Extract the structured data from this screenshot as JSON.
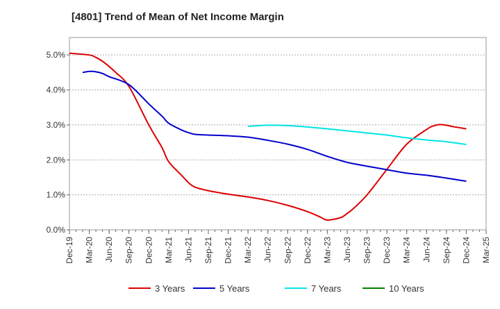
{
  "chart_data": {
    "type": "line",
    "title": "[4801]  Trend of Mean of Net Income Margin",
    "xlabel": "",
    "ylabel": "",
    "ylim": [
      0.0,
      5.5
    ],
    "y_ticks": [
      "0.0%",
      "1.0%",
      "2.0%",
      "3.0%",
      "4.0%",
      "5.0%"
    ],
    "x_ticks": [
      "Dec-19",
      "Mar-20",
      "Jun-20",
      "Sep-20",
      "Dec-20",
      "Mar-21",
      "Jun-21",
      "Sep-21",
      "Dec-21",
      "Mar-22",
      "Jun-22",
      "Sep-22",
      "Dec-22",
      "Mar-23",
      "Jun-23",
      "Sep-23",
      "Dec-23",
      "Mar-24",
      "Jun-24",
      "Sep-24",
      "Dec-24",
      "Mar-25"
    ],
    "grid": "horizontal dashed",
    "legend_position": "bottom",
    "series": [
      {
        "name": "3 Years",
        "color": "#dd0000",
        "x": [
          "Dec-19",
          "Mar-20",
          "Apr-20",
          "May-20",
          "Jun-20",
          "Jul-20",
          "Sep-20",
          "Dec-20",
          "Feb-21",
          "Mar-21",
          "May-21",
          "Jun-21",
          "Jul-21",
          "Sep-21",
          "Dec-21",
          "Mar-22",
          "Jun-22",
          "Sep-22",
          "Dec-22",
          "Feb-23",
          "Mar-23",
          "May-23",
          "Jun-23",
          "Jul-23",
          "Sep-23",
          "Dec-23",
          "Mar-24",
          "Jun-24",
          "Jul-24",
          "Aug-24",
          "Sep-24",
          "Oct-24",
          "Nov-24",
          "Dec-24"
        ],
        "values": [
          5.05,
          5.0,
          4.93,
          4.82,
          4.67,
          4.5,
          4.1,
          3.0,
          2.35,
          1.95,
          1.55,
          1.35,
          1.22,
          1.12,
          1.02,
          0.94,
          0.84,
          0.7,
          0.52,
          0.36,
          0.28,
          0.35,
          0.47,
          0.62,
          1.0,
          1.73,
          2.45,
          2.87,
          2.97,
          3.01,
          2.99,
          2.95,
          2.92,
          2.89
        ]
      },
      {
        "name": "5 Years",
        "color": "#0000cc",
        "x": [
          "Dec-19",
          "Feb-20",
          "Mar-20",
          "Apr-20",
          "May-20",
          "Jun-20",
          "Sep-20",
          "Dec-20",
          "Feb-21",
          "Mar-21",
          "May-21",
          "Jun-21",
          "Jul-21",
          "Sep-21",
          "Dec-21",
          "Mar-22",
          "Jun-22",
          "Sep-22",
          "Dec-22",
          "Mar-23",
          "Jun-23",
          "Sep-23",
          "Dec-23",
          "Mar-24",
          "Jun-24",
          "Sep-24",
          "Dec-24"
        ],
        "values": [
          null,
          4.5,
          4.53,
          4.52,
          4.47,
          4.38,
          4.15,
          3.6,
          3.25,
          3.05,
          2.85,
          2.78,
          2.73,
          2.71,
          2.69,
          2.65,
          2.56,
          2.45,
          2.3,
          2.1,
          1.93,
          1.82,
          1.72,
          1.62,
          1.56,
          1.48,
          1.39
        ]
      },
      {
        "name": "7 Years",
        "color": "#00e5e5",
        "x": [
          "Mar-22",
          "Jun-22",
          "Sep-22",
          "Dec-22",
          "Mar-23",
          "Jun-23",
          "Sep-23",
          "Dec-23",
          "Mar-24",
          "Jun-24",
          "Sep-24",
          "Dec-24"
        ],
        "values": [
          2.96,
          2.99,
          2.98,
          2.94,
          2.89,
          2.83,
          2.77,
          2.71,
          2.63,
          2.57,
          2.52,
          2.44
        ]
      },
      {
        "name": "10 Years",
        "color": "#008000",
        "x": [],
        "values": []
      }
    ]
  }
}
